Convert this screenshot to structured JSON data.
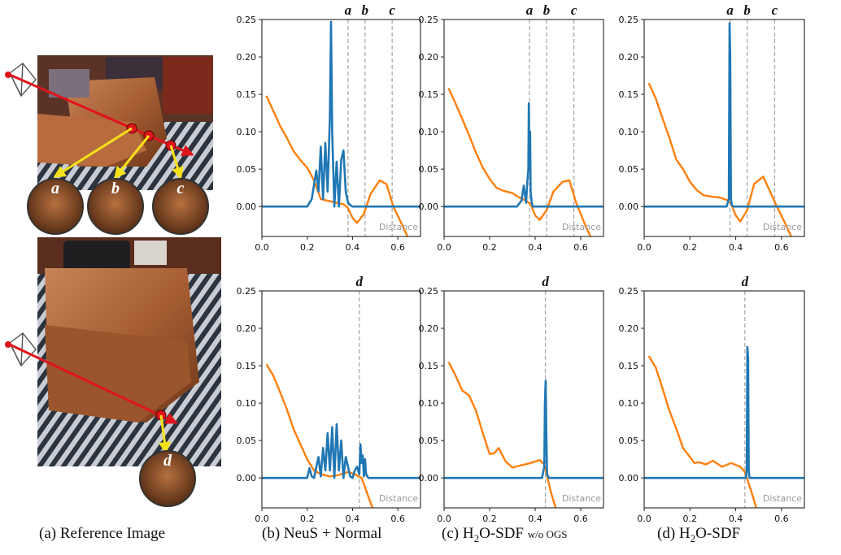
{
  "colors": {
    "weight": "#1f77b4",
    "sdf": "#ff7f0e",
    "marker": "#aaaaaa",
    "ray": "#e0141c",
    "arrow": "#f5e11a"
  },
  "captions": {
    "a": "(a) Reference Image",
    "b": "(b) NeuS + Normal",
    "c_prefix": "(c) H",
    "c_sub": "2",
    "c_suffix": "O-SDF",
    "c_tag": "w/o OGS",
    "d_prefix": "(d) H",
    "d_sub": "2",
    "d_suffix": "O-SDF"
  },
  "images": {
    "top": {
      "labels": [
        "a",
        "b",
        "c"
      ],
      "icon": "camera-icon"
    },
    "bottom": {
      "labels": [
        "d"
      ],
      "icon": "camera-icon"
    }
  },
  "chart_data": [
    {
      "type": "line",
      "row": 1,
      "col": 1,
      "xlabel": "Distance",
      "ylim": [
        -0.04,
        0.25
      ],
      "xlim": [
        0,
        0.7
      ],
      "yticks": [
        "0.00",
        "0.05",
        "0.10",
        "0.15",
        "0.20",
        "0.25"
      ],
      "xticks": [
        "0.0",
        "0.2",
        "0.4",
        "0.6"
      ],
      "markers": [
        {
          "label": "a",
          "x": 0.38
        },
        {
          "label": "b",
          "x": 0.455
        },
        {
          "label": "c",
          "x": 0.575
        }
      ],
      "series": [
        {
          "color": "orange",
          "x": [
            0.02,
            0.05,
            0.08,
            0.11,
            0.14,
            0.17,
            0.2,
            0.23,
            0.26,
            0.3,
            0.33,
            0.36,
            0.38,
            0.4,
            0.42,
            0.45,
            0.48,
            0.52,
            0.55,
            0.58,
            0.62,
            0.65
          ],
          "y": [
            0.148,
            0.128,
            0.108,
            0.092,
            0.074,
            0.062,
            0.052,
            0.035,
            0.01,
            0.007,
            0.005,
            0.003,
            -0.002,
            -0.015,
            -0.022,
            -0.01,
            0.017,
            0.035,
            0.03,
            0.0,
            -0.025,
            -0.045
          ]
        },
        {
          "color": "blue",
          "x": [
            0,
            0.2,
            0.22,
            0.24,
            0.25,
            0.26,
            0.27,
            0.28,
            0.29,
            0.3,
            0.305,
            0.31,
            0.32,
            0.33,
            0.34,
            0.35,
            0.36,
            0.37,
            0.38,
            0.39,
            0.4,
            0.7
          ],
          "y": [
            0,
            0,
            0.01,
            0.048,
            0.02,
            0.08,
            0.01,
            0.085,
            0.02,
            0.12,
            0.247,
            0.1,
            0.0,
            0.06,
            0.0,
            0.062,
            0.075,
            0.02,
            0.005,
            0.002,
            0,
            0
          ]
        }
      ]
    },
    {
      "type": "line",
      "row": 1,
      "col": 2,
      "xlabel": "Distance",
      "ylim": [
        -0.04,
        0.25
      ],
      "xlim": [
        0,
        0.7
      ],
      "yticks": [
        "0.00",
        "0.05",
        "0.10",
        "0.15",
        "0.20",
        "0.25"
      ],
      "xticks": [
        "0.0",
        "0.2",
        "0.4",
        "0.6"
      ],
      "markers": [
        {
          "label": "a",
          "x": 0.375
        },
        {
          "label": "b",
          "x": 0.45
        },
        {
          "label": "c",
          "x": 0.57
        }
      ],
      "series": [
        {
          "color": "orange",
          "x": [
            0.02,
            0.05,
            0.08,
            0.11,
            0.14,
            0.17,
            0.2,
            0.23,
            0.26,
            0.3,
            0.33,
            0.36,
            0.38,
            0.4,
            0.42,
            0.45,
            0.48,
            0.52,
            0.55,
            0.58,
            0.62,
            0.65
          ],
          "y": [
            0.158,
            0.138,
            0.117,
            0.095,
            0.072,
            0.052,
            0.037,
            0.025,
            0.021,
            0.018,
            0.012,
            0.008,
            0.003,
            -0.012,
            -0.018,
            -0.005,
            0.02,
            0.033,
            0.035,
            0.005,
            -0.025,
            -0.045
          ]
        },
        {
          "color": "blue",
          "x": [
            0,
            0.32,
            0.34,
            0.35,
            0.36,
            0.365,
            0.37,
            0.372,
            0.375,
            0.378,
            0.38,
            0.385,
            0.39,
            0.7
          ],
          "y": [
            0,
            0,
            0.008,
            0.028,
            0.005,
            0.03,
            0.05,
            0.138,
            0.06,
            0.1,
            0.02,
            0.005,
            0,
            0
          ]
        }
      ]
    },
    {
      "type": "line",
      "row": 1,
      "col": 3,
      "xlabel": "Distance",
      "ylim": [
        -0.04,
        0.25
      ],
      "xlim": [
        0,
        0.7
      ],
      "yticks": [
        "0.00",
        "0.05",
        "0.10",
        "0.15",
        "0.20",
        "0.25"
      ],
      "xticks": [
        "0.0",
        "0.2",
        "0.4",
        "0.6"
      ],
      "markers": [
        {
          "label": "a",
          "x": 0.375
        },
        {
          "label": "b",
          "x": 0.45
        },
        {
          "label": "c",
          "x": 0.57
        }
      ],
      "series": [
        {
          "color": "orange",
          "x": [
            0.02,
            0.05,
            0.08,
            0.11,
            0.14,
            0.17,
            0.2,
            0.23,
            0.26,
            0.3,
            0.33,
            0.36,
            0.38,
            0.4,
            0.42,
            0.45,
            0.48,
            0.52,
            0.55,
            0.58,
            0.62,
            0.65
          ],
          "y": [
            0.165,
            0.145,
            0.118,
            0.092,
            0.063,
            0.05,
            0.033,
            0.022,
            0.015,
            0.013,
            0.012,
            0.009,
            0.004,
            -0.012,
            -0.02,
            -0.005,
            0.03,
            0.04,
            0.02,
            0.0,
            -0.025,
            -0.045
          ]
        },
        {
          "color": "blue",
          "x": [
            0,
            0.36,
            0.37,
            0.373,
            0.376,
            0.379,
            0.383,
            0.39,
            0.7
          ],
          "y": [
            0,
            0,
            0.01,
            0.245,
            0.2,
            0.01,
            0.002,
            0,
            0
          ]
        }
      ]
    },
    {
      "type": "line",
      "row": 2,
      "col": 1,
      "xlabel": "Distance",
      "ylim": [
        -0.04,
        0.25
      ],
      "xlim": [
        0,
        0.7
      ],
      "yticks": [
        "0.00",
        "0.05",
        "0.10",
        "0.15",
        "0.20",
        "0.25"
      ],
      "xticks": [
        "0.0",
        "0.2",
        "0.4",
        "0.6"
      ],
      "markers": [
        {
          "label": "d",
          "x": 0.43
        }
      ],
      "series": [
        {
          "color": "orange",
          "x": [
            0.02,
            0.05,
            0.08,
            0.11,
            0.14,
            0.17,
            0.2,
            0.23,
            0.26,
            0.3,
            0.34,
            0.38,
            0.41,
            0.44,
            0.47,
            0.5
          ],
          "y": [
            0.152,
            0.137,
            0.115,
            0.092,
            0.065,
            0.045,
            0.025,
            0.01,
            0.005,
            0.002,
            0.004,
            0.008,
            0.005,
            0.0,
            -0.025,
            -0.05
          ]
        },
        {
          "color": "blue",
          "x": [
            0,
            0.2,
            0.21,
            0.22,
            0.23,
            0.25,
            0.26,
            0.27,
            0.28,
            0.29,
            0.3,
            0.31,
            0.32,
            0.33,
            0.34,
            0.35,
            0.36,
            0.37,
            0.38,
            0.39,
            0.4,
            0.41,
            0.42,
            0.43,
            0.435,
            0.44,
            0.445,
            0.45,
            0.455,
            0.46,
            0.47,
            0.7
          ],
          "y": [
            0,
            0,
            0.013,
            0.002,
            0.0,
            0.028,
            0.002,
            0.04,
            0.01,
            0.06,
            0.01,
            0.068,
            0.0,
            0.072,
            0.01,
            0.05,
            0.0,
            0.028,
            0.015,
            0.002,
            0.0,
            0.01,
            0.015,
            0.005,
            0.045,
            0.02,
            0.03,
            0.002,
            0.025,
            0.005,
            0,
            0
          ]
        }
      ]
    },
    {
      "type": "line",
      "row": 2,
      "col": 2,
      "xlabel": "Distance",
      "ylim": [
        -0.04,
        0.25
      ],
      "xlim": [
        0,
        0.7
      ],
      "yticks": [
        "0.00",
        "0.05",
        "0.10",
        "0.15",
        "0.20",
        "0.25"
      ],
      "xticks": [
        "0.0",
        "0.2",
        "0.4",
        "0.6"
      ],
      "markers": [
        {
          "label": "d",
          "x": 0.445
        }
      ],
      "series": [
        {
          "color": "orange",
          "x": [
            0.02,
            0.05,
            0.08,
            0.11,
            0.14,
            0.17,
            0.2,
            0.22,
            0.24,
            0.27,
            0.3,
            0.34,
            0.38,
            0.42,
            0.44,
            0.47,
            0.5
          ],
          "y": [
            0.155,
            0.137,
            0.117,
            0.11,
            0.09,
            0.06,
            0.032,
            0.033,
            0.04,
            0.022,
            0.014,
            0.017,
            0.02,
            0.024,
            0.018,
            -0.02,
            -0.05
          ]
        },
        {
          "color": "blue",
          "x": [
            0,
            0.43,
            0.44,
            0.443,
            0.446,
            0.449,
            0.452,
            0.46,
            0.7
          ],
          "y": [
            0,
            0,
            0.015,
            0.1,
            0.13,
            0.06,
            0.005,
            0,
            0
          ]
        }
      ]
    },
    {
      "type": "line",
      "row": 2,
      "col": 3,
      "xlabel": "Distance",
      "ylim": [
        -0.04,
        0.25
      ],
      "xlim": [
        0,
        0.7
      ],
      "yticks": [
        "0.00",
        "0.05",
        "0.10",
        "0.15",
        "0.20",
        "0.25"
      ],
      "xticks": [
        "0.0",
        "0.2",
        "0.4",
        "0.6"
      ],
      "markers": [
        {
          "label": "d",
          "x": 0.44
        }
      ],
      "series": [
        {
          "color": "orange",
          "x": [
            0.02,
            0.05,
            0.08,
            0.11,
            0.14,
            0.17,
            0.2,
            0.22,
            0.24,
            0.27,
            0.3,
            0.34,
            0.38,
            0.42,
            0.44,
            0.47,
            0.5
          ],
          "y": [
            0.163,
            0.148,
            0.12,
            0.09,
            0.066,
            0.04,
            0.028,
            0.02,
            0.021,
            0.018,
            0.023,
            0.015,
            0.02,
            0.015,
            0.008,
            -0.02,
            -0.05
          ]
        },
        {
          "color": "blue",
          "x": [
            0,
            0.445,
            0.448,
            0.451,
            0.454,
            0.457,
            0.46,
            0.7
          ],
          "y": [
            0,
            0,
            0.01,
            0.175,
            0.16,
            0.01,
            0,
            0
          ]
        }
      ]
    }
  ]
}
